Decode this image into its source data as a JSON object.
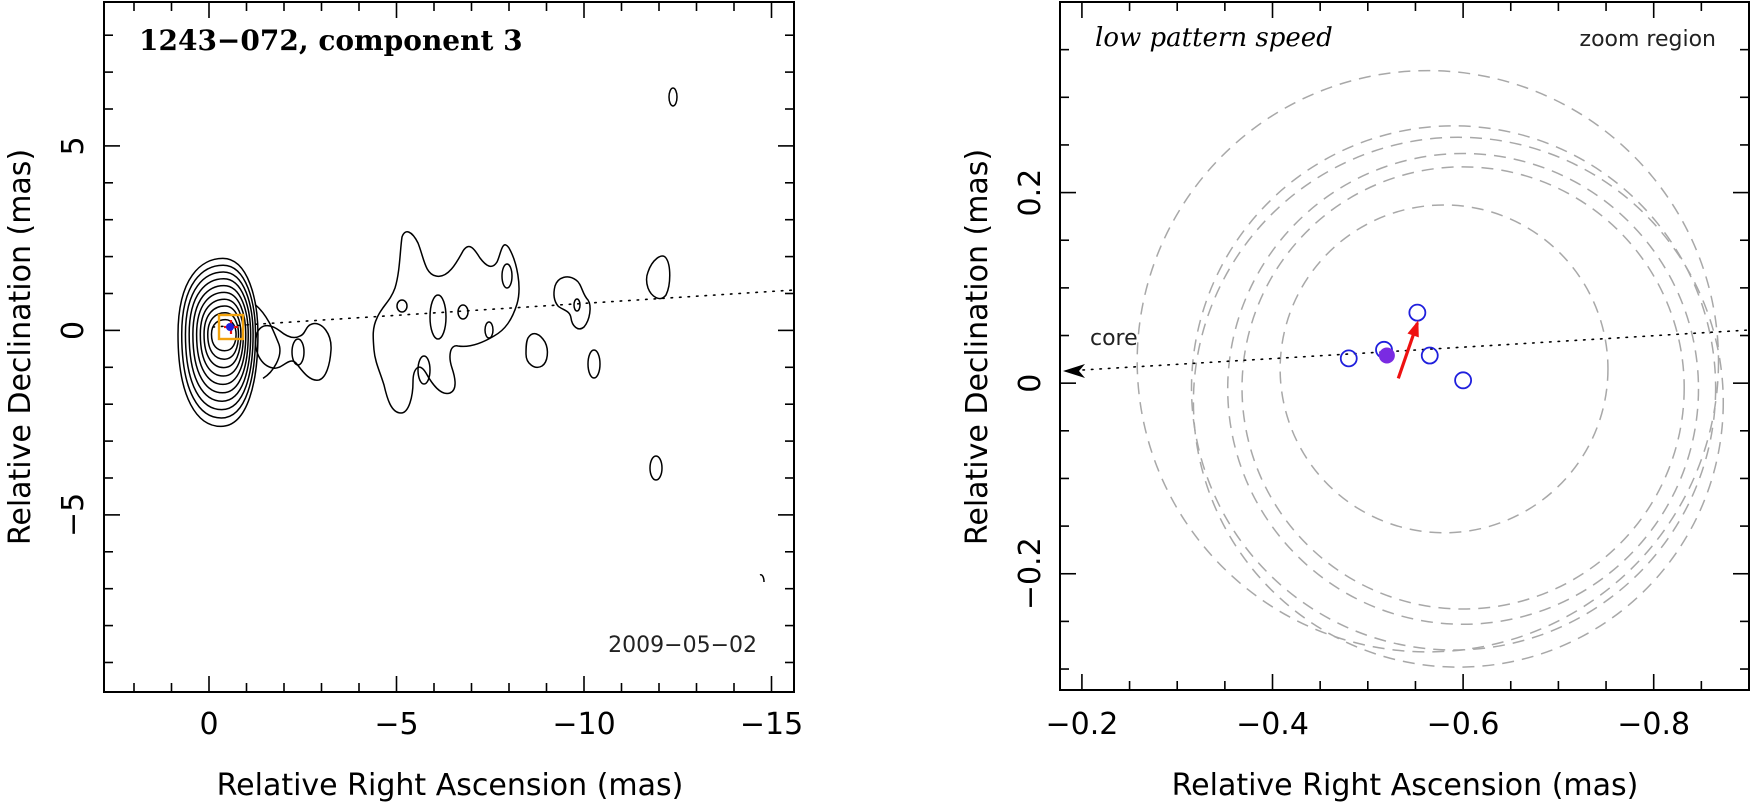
{
  "colors": {
    "epoch_marker": "#1f1fdd",
    "current_marker": "#7a2be2",
    "motion_arrow": "#ee1111",
    "zoom_box": "#f2a20c",
    "rings": "#a8a8a8"
  },
  "chart_data": [
    {
      "type": "contour",
      "title": "1243−072, component 3",
      "date_label": "2009−05−02",
      "xlabel": "Relative Right Ascension (mas)",
      "ylabel": "Relative Declination (mas)",
      "xlim": [
        2.8,
        -15.6
      ],
      "ylim": [
        -9.8,
        8.9
      ],
      "xticks_major": [
        0,
        -5,
        -10,
        -15
      ],
      "xtick_labels": [
        "0",
        "−5",
        "−10",
        "−15"
      ],
      "yticks_major": [
        5,
        0,
        -5
      ],
      "ytick_labels": [
        "5",
        "0",
        "−5"
      ],
      "core_contour_levels": 10,
      "jet_axis": {
        "from": [
          0,
          0
        ],
        "to": [
          -15.6,
          1.05
        ]
      },
      "zoom_box": {
        "x": [
          -0.2,
          -0.9
        ],
        "y": [
          -0.32,
          0.32
        ]
      },
      "component_position": [
        -0.52,
        0.03
      ]
    },
    {
      "type": "scatter",
      "title": "low pattern speed",
      "corner_label": "zoom region",
      "core_label": "core",
      "xlabel": "Relative Right Ascension (mas)",
      "ylabel": "Relative Declination (mas)",
      "xlim": [
        -0.177,
        -0.9
      ],
      "ylim": [
        -0.322,
        0.4
      ],
      "xticks_major": [
        -0.2,
        -0.4,
        -0.6,
        -0.8
      ],
      "xtick_labels": [
        "−0.2",
        "−0.4",
        "−0.6",
        "−0.8"
      ],
      "yticks_major": [
        0.2,
        0,
        -0.2
      ],
      "ytick_labels": [
        "0.2",
        "0",
        "−0.2"
      ],
      "jet_axis": {
        "from": [
          -0.18,
          0.01
        ],
        "to": [
          -0.9,
          0.053
        ]
      },
      "epoch_positions": [
        {
          "x": -0.48,
          "y": 0.026
        },
        {
          "x": -0.517,
          "y": 0.035
        },
        {
          "x": -0.552,
          "y": 0.074
        },
        {
          "x": -0.565,
          "y": 0.029
        },
        {
          "x": -0.6,
          "y": 0.003
        }
      ],
      "current_position": {
        "x": -0.52,
        "y": 0.029
      },
      "motion_arrow": {
        "from": [
          -0.532,
          0.005
        ],
        "to": [
          -0.552,
          0.063
        ]
      },
      "rings": [
        {
          "cx": -0.563,
          "cy": 0.023,
          "r": 0.305
        },
        {
          "cx": -0.6,
          "cy": -0.006,
          "r": 0.247
        },
        {
          "cx": -0.59,
          "cy": -0.005,
          "r": 0.275
        },
        {
          "cx": -0.595,
          "cy": -0.02,
          "r": 0.278
        },
        {
          "cx": -0.6,
          "cy": -0.005,
          "r": 0.232
        },
        {
          "cx": -0.58,
          "cy": 0.015,
          "r": 0.172
        }
      ]
    }
  ]
}
